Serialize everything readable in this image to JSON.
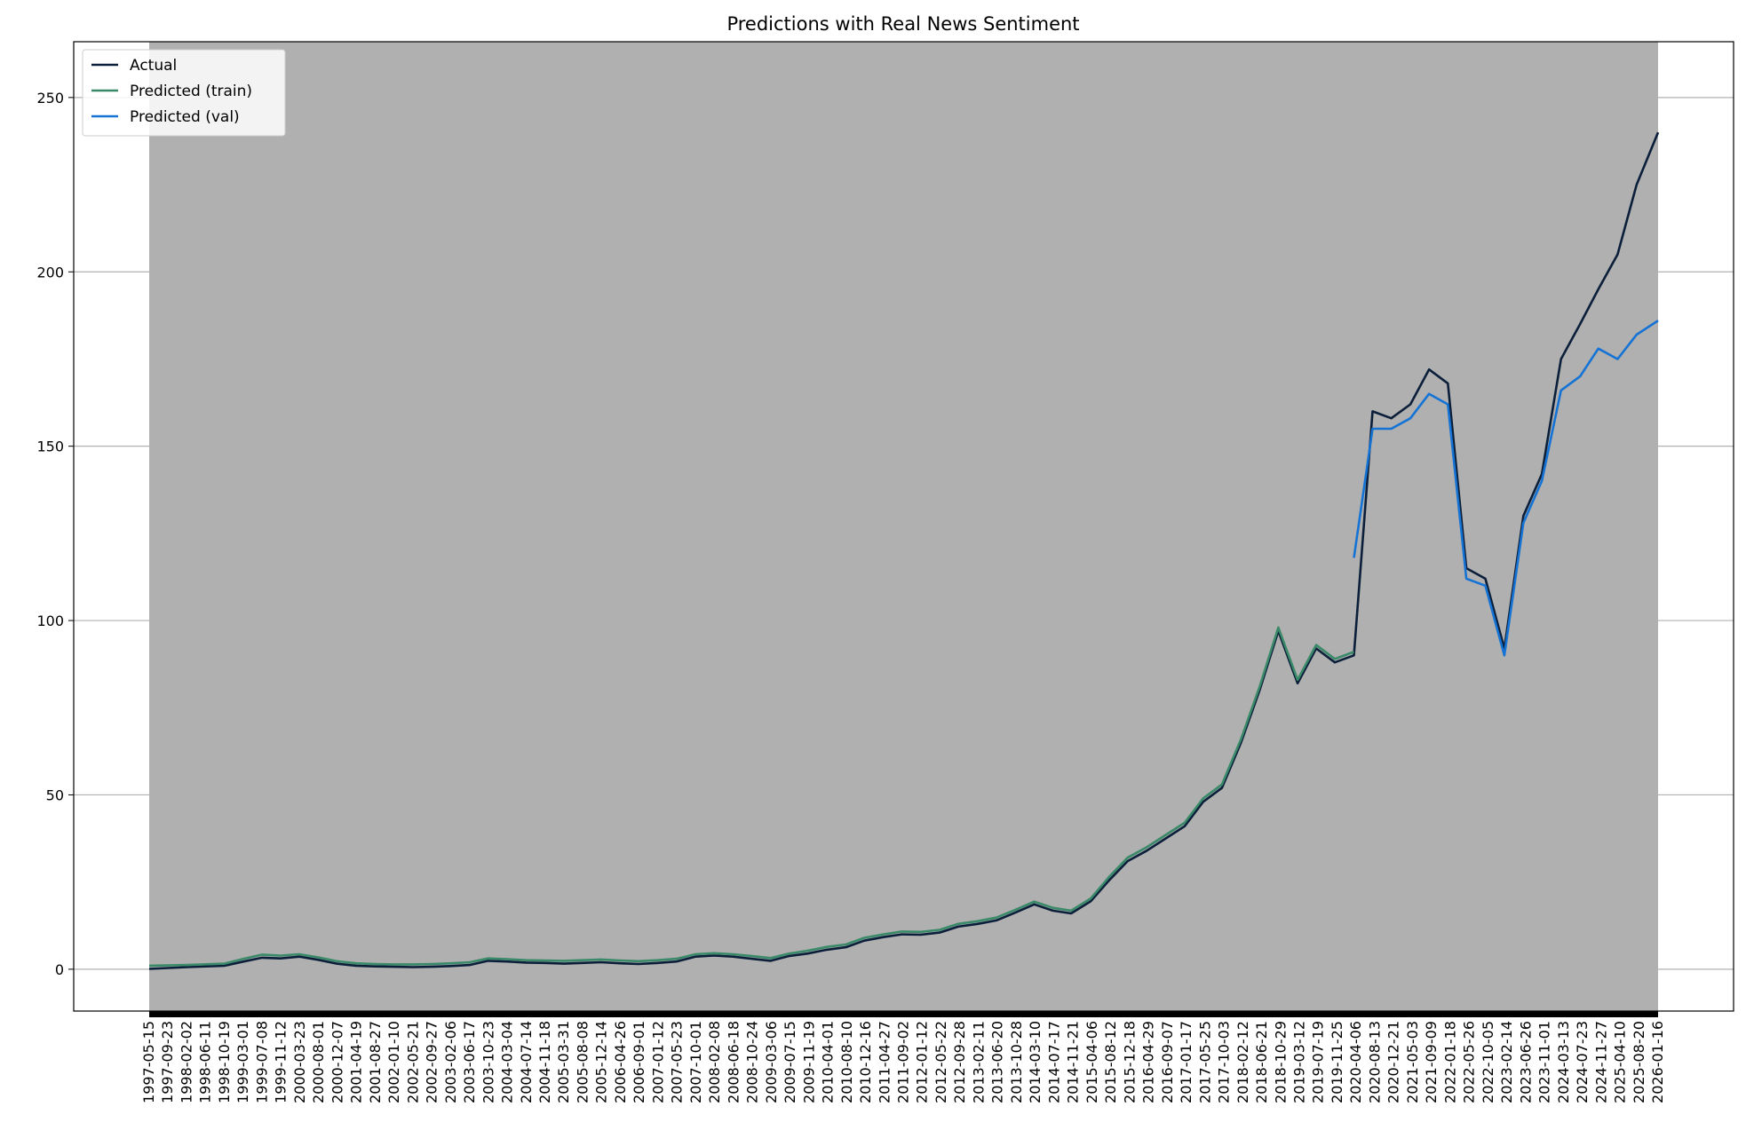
{
  "chart_data": {
    "type": "line",
    "title": "Predictions with Real News Sentiment",
    "xlabel": "",
    "ylabel": "",
    "ylim": [
      -12,
      266
    ],
    "yticks": [
      0,
      50,
      100,
      150,
      200,
      250
    ],
    "grid": "y-axis",
    "legend_position": "top-left",
    "x_start": "1997-05-15",
    "x_end": "2026-01-16",
    "x_tick_labels": [
      "1997-05-15",
      "1997-09-23",
      "1998-02-02",
      "1998-06-11",
      "1998-10-19",
      "1999-03-01",
      "1999-07-08",
      "1999-11-12",
      "2000-03-23",
      "2000-08-01",
      "2000-12-07",
      "2001-04-19",
      "2001-08-27",
      "2002-01-10",
      "2002-05-21",
      "2002-09-27",
      "2003-02-06",
      "2003-06-17",
      "2003-10-23",
      "2004-03-04",
      "2004-07-14",
      "2004-11-18",
      "2005-03-31",
      "2005-08-08",
      "2005-12-14",
      "2006-04-26",
      "2006-09-01",
      "2007-01-12",
      "2007-05-23",
      "2007-10-01",
      "2008-02-08",
      "2008-06-18",
      "2008-10-24",
      "2009-03-06",
      "2009-07-15",
      "2009-11-19",
      "2010-04-01",
      "2010-08-10",
      "2010-12-16",
      "2011-04-27",
      "2011-09-02",
      "2012-01-12",
      "2012-05-22",
      "2012-09-28",
      "2013-02-11",
      "2013-06-20",
      "2013-10-28",
      "2014-03-10",
      "2014-07-17",
      "2014-11-21",
      "2015-04-06",
      "2015-08-12",
      "2015-12-18",
      "2016-04-29",
      "2016-09-07",
      "2017-01-17",
      "2017-05-25",
      "2017-10-03",
      "2018-02-12",
      "2018-06-21",
      "2018-10-29",
      "2019-03-12",
      "2019-07-19",
      "2019-11-25",
      "2020-04-06",
      "2020-08-13",
      "2020-12-21",
      "2021-05-03",
      "2021-09-09",
      "2022-01-18",
      "2022-05-26",
      "2022-10-05",
      "2023-02-14",
      "2023-06-26",
      "2023-11-01",
      "2024-03-13",
      "2024-07-23",
      "2024-11-27",
      "2025-04-10",
      "2025-08-20",
      "2026-01-16"
    ],
    "colors": {
      "plot_background": "#b0b0b0",
      "actual": "#0b1f3a",
      "train": "#3a8a6a",
      "val": "#1473d4",
      "grid": "#b0b0b0"
    },
    "series": [
      {
        "name": "Actual",
        "color": "#0b1f3a",
        "points": [
          [
            "1997-05-15",
            0.1
          ],
          [
            "1998-02-02",
            0.6
          ],
          [
            "1998-10-19",
            1.0
          ],
          [
            "1999-03-01",
            2.2
          ],
          [
            "1999-07-08",
            3.3
          ],
          [
            "1999-11-12",
            3.1
          ],
          [
            "2000-03-23",
            3.6
          ],
          [
            "2000-08-01",
            2.7
          ],
          [
            "2000-12-07",
            1.6
          ],
          [
            "2001-04-19",
            1.0
          ],
          [
            "2001-08-27",
            0.8
          ],
          [
            "2002-01-10",
            0.7
          ],
          [
            "2002-05-21",
            0.6
          ],
          [
            "2002-09-27",
            0.7
          ],
          [
            "2003-02-06",
            0.9
          ],
          [
            "2003-06-17",
            1.2
          ],
          [
            "2003-10-23",
            2.4
          ],
          [
            "2004-03-04",
            2.2
          ],
          [
            "2004-07-14",
            1.9
          ],
          [
            "2004-11-18",
            1.8
          ],
          [
            "2005-03-31",
            1.6
          ],
          [
            "2005-08-08",
            1.8
          ],
          [
            "2005-12-14",
            2.0
          ],
          [
            "2006-04-26",
            1.7
          ],
          [
            "2006-09-01",
            1.5
          ],
          [
            "2007-01-12",
            1.8
          ],
          [
            "2007-05-23",
            2.2
          ],
          [
            "2007-10-01",
            3.6
          ],
          [
            "2008-02-08",
            3.9
          ],
          [
            "2008-06-18",
            3.6
          ],
          [
            "2008-10-24",
            3.0
          ],
          [
            "2009-03-06",
            2.4
          ],
          [
            "2009-07-15",
            3.8
          ],
          [
            "2009-11-19",
            4.5
          ],
          [
            "2010-04-01",
            5.6
          ],
          [
            "2010-08-10",
            6.3
          ],
          [
            "2010-12-16",
            8.2
          ],
          [
            "2011-04-27",
            9.2
          ],
          [
            "2011-09-02",
            10.0
          ],
          [
            "2012-01-12",
            9.9
          ],
          [
            "2012-05-22",
            10.5
          ],
          [
            "2012-09-28",
            12.2
          ],
          [
            "2013-02-11",
            13.0
          ],
          [
            "2013-06-20",
            14.0
          ],
          [
            "2013-10-28",
            16.2
          ],
          [
            "2014-03-10",
            18.6
          ],
          [
            "2014-07-17",
            16.8
          ],
          [
            "2014-11-21",
            16.0
          ],
          [
            "2015-04-06",
            19.5
          ],
          [
            "2015-08-12",
            25.5
          ],
          [
            "2015-12-18",
            31.0
          ],
          [
            "2016-04-29",
            34.0
          ],
          [
            "2016-09-07",
            37.5
          ],
          [
            "2017-01-17",
            41.0
          ],
          [
            "2017-05-25",
            48.0
          ],
          [
            "2017-10-03",
            52.0
          ],
          [
            "2018-02-12",
            65.0
          ],
          [
            "2018-06-21",
            80.0
          ],
          [
            "2018-10-29",
            97.0
          ],
          [
            "2019-03-12",
            82.0
          ],
          [
            "2019-07-19",
            92.0
          ],
          [
            "2019-11-25",
            88.0
          ],
          [
            "2020-04-06",
            90.0
          ],
          [
            "2020-08-13",
            160.0
          ],
          [
            "2020-12-21",
            158.0
          ],
          [
            "2021-05-03",
            162.0
          ],
          [
            "2021-09-09",
            172.0
          ],
          [
            "2022-01-18",
            168.0
          ],
          [
            "2022-05-26",
            115.0
          ],
          [
            "2022-10-05",
            112.0
          ],
          [
            "2023-02-14",
            92.0
          ],
          [
            "2023-06-26",
            130.0
          ],
          [
            "2023-11-01",
            142.0
          ],
          [
            "2024-03-13",
            175.0
          ],
          [
            "2024-07-23",
            185.0
          ],
          [
            "2024-11-27",
            195.0
          ],
          [
            "2025-04-10",
            205.0
          ],
          [
            "2025-08-20",
            225.0
          ],
          [
            "2026-01-16",
            240.0
          ]
        ]
      },
      {
        "name": "Predicted (train)",
        "color": "#3a8a6a",
        "points": [
          [
            "1997-05-15",
            1.0
          ],
          [
            "1998-02-02",
            1.2
          ],
          [
            "1998-10-19",
            1.6
          ],
          [
            "1999-03-01",
            3.0
          ],
          [
            "1999-07-08",
            4.2
          ],
          [
            "1999-11-12",
            3.9
          ],
          [
            "2000-03-23",
            4.3
          ],
          [
            "2000-08-01",
            3.4
          ],
          [
            "2000-12-07",
            2.3
          ],
          [
            "2001-04-19",
            1.7
          ],
          [
            "2001-08-27",
            1.5
          ],
          [
            "2002-01-10",
            1.4
          ],
          [
            "2002-05-21",
            1.4
          ],
          [
            "2002-09-27",
            1.5
          ],
          [
            "2003-02-06",
            1.7
          ],
          [
            "2003-06-17",
            2.0
          ],
          [
            "2003-10-23",
            3.1
          ],
          [
            "2004-03-04",
            2.9
          ],
          [
            "2004-07-14",
            2.6
          ],
          [
            "2004-11-18",
            2.5
          ],
          [
            "2005-03-31",
            2.4
          ],
          [
            "2005-08-08",
            2.6
          ],
          [
            "2005-12-14",
            2.8
          ],
          [
            "2006-04-26",
            2.5
          ],
          [
            "2006-09-01",
            2.3
          ],
          [
            "2007-01-12",
            2.6
          ],
          [
            "2007-05-23",
            3.0
          ],
          [
            "2007-10-01",
            4.3
          ],
          [
            "2008-02-08",
            4.6
          ],
          [
            "2008-06-18",
            4.3
          ],
          [
            "2008-10-24",
            3.8
          ],
          [
            "2009-03-06",
            3.2
          ],
          [
            "2009-07-15",
            4.5
          ],
          [
            "2009-11-19",
            5.3
          ],
          [
            "2010-04-01",
            6.4
          ],
          [
            "2010-08-10",
            7.1
          ],
          [
            "2010-12-16",
            9.0
          ],
          [
            "2011-04-27",
            10.0
          ],
          [
            "2011-09-02",
            10.8
          ],
          [
            "2012-01-12",
            10.7
          ],
          [
            "2012-05-22",
            11.3
          ],
          [
            "2012-09-28",
            13.0
          ],
          [
            "2013-02-11",
            13.8
          ],
          [
            "2013-06-20",
            14.8
          ],
          [
            "2013-10-28",
            17.0
          ],
          [
            "2014-03-10",
            19.4
          ],
          [
            "2014-07-17",
            17.6
          ],
          [
            "2014-11-21",
            16.8
          ],
          [
            "2015-04-06",
            20.3
          ],
          [
            "2015-08-12",
            26.5
          ],
          [
            "2015-12-18",
            32.0
          ],
          [
            "2016-04-29",
            35.0
          ],
          [
            "2016-09-07",
            38.5
          ],
          [
            "2017-01-17",
            42.0
          ],
          [
            "2017-05-25",
            49.0
          ],
          [
            "2017-10-03",
            53.0
          ],
          [
            "2018-02-12",
            66.0
          ],
          [
            "2018-06-21",
            81.0
          ],
          [
            "2018-10-29",
            98.0
          ],
          [
            "2019-03-12",
            83.0
          ],
          [
            "2019-07-19",
            93.0
          ],
          [
            "2019-11-25",
            89.0
          ],
          [
            "2020-04-06",
            91.0
          ]
        ]
      },
      {
        "name": "Predicted (val)",
        "color": "#1473d4",
        "points": [
          [
            "2020-04-06",
            118.0
          ],
          [
            "2020-08-13",
            155.0
          ],
          [
            "2020-12-21",
            155.0
          ],
          [
            "2021-05-03",
            158.0
          ],
          [
            "2021-09-09",
            165.0
          ],
          [
            "2022-01-18",
            162.0
          ],
          [
            "2022-05-26",
            112.0
          ],
          [
            "2022-10-05",
            110.0
          ],
          [
            "2023-02-14",
            90.0
          ],
          [
            "2023-06-26",
            128.0
          ],
          [
            "2023-11-01",
            140.0
          ],
          [
            "2024-03-13",
            166.0
          ],
          [
            "2024-07-23",
            170.0
          ],
          [
            "2024-11-27",
            178.0
          ],
          [
            "2025-04-10",
            175.0
          ],
          [
            "2025-08-20",
            182.0
          ],
          [
            "2026-01-16",
            186.0
          ]
        ]
      }
    ]
  }
}
